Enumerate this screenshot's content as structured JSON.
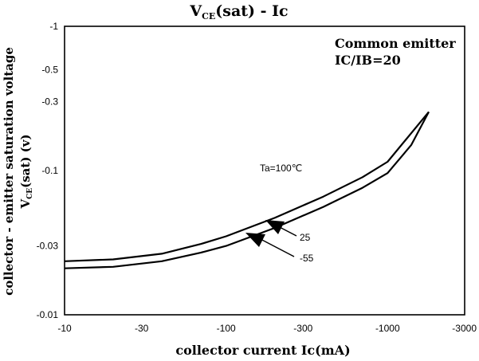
{
  "chart_data": {
    "type": "line",
    "title_main": "V",
    "title_sub": "CE",
    "title_rest": "(sat) - Ic",
    "xlabel": "collector current Ic(mA)",
    "ylabel_line1": "collector - emitter saturation voltage",
    "ylabel_line2_main": "V",
    "ylabel_line2_sub": "CE",
    "ylabel_line2_rest": "(sat) (v)",
    "x_scale": "log",
    "y_scale": "log",
    "xlim": [
      -10,
      -3000
    ],
    "ylim": [
      -0.01,
      -1
    ],
    "x_ticks": [
      "-10",
      "-30",
      "-100",
      "-300",
      "-1000",
      "-3000"
    ],
    "y_ticks": [
      "-1",
      "-0.5",
      "-0.3",
      "-0.1",
      "-0.03",
      "-0.01"
    ],
    "x_tick_values": [
      -10,
      -30,
      -100,
      -300,
      -1000,
      -3000
    ],
    "y_tick_values": [
      -1,
      -0.5,
      -0.3,
      -0.1,
      -0.03,
      -0.01
    ],
    "grid": false,
    "annotation_box": [
      "Common emitter",
      "IC/IB=20"
    ],
    "series": [
      {
        "label": "Ta=100℃",
        "x": [
          -10,
          -20,
          -40,
          -70,
          -100,
          -200,
          -400,
          -700,
          -1000,
          -1800
        ],
        "y": [
          -0.0235,
          -0.0242,
          -0.0265,
          -0.031,
          -0.035,
          -0.047,
          -0.066,
          -0.09,
          -0.115,
          -0.255
        ]
      },
      {
        "label": "25",
        "x": [
          -10,
          -20,
          -40,
          -70,
          -100,
          -200,
          -400,
          -700,
          -1000,
          -1800
        ],
        "y": [
          -0.0235,
          -0.0242,
          -0.0265,
          -0.031,
          -0.035,
          -0.047,
          -0.066,
          -0.09,
          -0.115,
          -0.255
        ]
      },
      {
        "label": "-55",
        "x": [
          -10,
          -20,
          -40,
          -70,
          -100,
          -200,
          -400,
          -700,
          -1000,
          -1400,
          -1800
        ],
        "y": [
          -0.021,
          -0.0215,
          -0.0235,
          -0.027,
          -0.03,
          -0.04,
          -0.056,
          -0.076,
          -0.096,
          -0.15,
          -0.255
        ]
      }
    ]
  }
}
